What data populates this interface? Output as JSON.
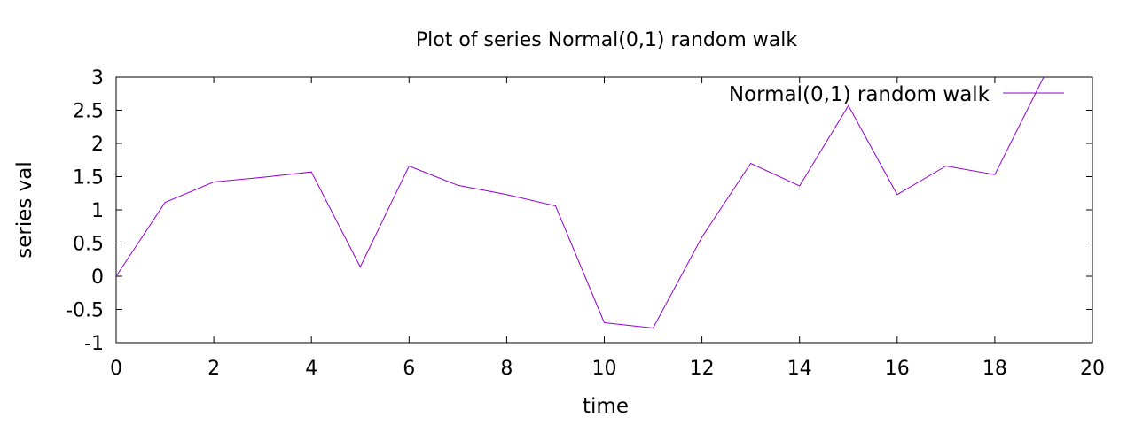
{
  "chart_data": {
    "type": "line",
    "title": "Plot of series Normal(0,1) random walk",
    "xlabel": "time",
    "ylabel": "series val",
    "xlim": [
      0,
      20
    ],
    "ylim": [
      -1,
      3
    ],
    "x_ticks": [
      0,
      2,
      4,
      6,
      8,
      10,
      12,
      14,
      16,
      18,
      20
    ],
    "y_ticks": [
      3,
      2.5,
      2,
      1.5,
      1,
      0.5,
      0,
      -0.5,
      -1
    ],
    "x_tick_labels": [
      "0",
      "2",
      "4",
      "6",
      "8",
      "10",
      "12",
      "14",
      "16",
      "18",
      "20"
    ],
    "y_tick_labels": [
      "3",
      "2.5",
      "2",
      "1.5",
      "1",
      "0.5",
      "0",
      "-0.5",
      "-1"
    ],
    "grid": false,
    "legend": {
      "placement": "top-right"
    },
    "series": [
      {
        "name": "Normal(0,1) random walk",
        "color": "#9400d3",
        "x": [
          0,
          1,
          2,
          3,
          4,
          5,
          6,
          7,
          8,
          9,
          10,
          11,
          12,
          13,
          14,
          15,
          16,
          17,
          18,
          19
        ],
        "values": [
          0.0,
          1.11,
          1.42,
          1.49,
          1.57,
          0.14,
          1.66,
          1.37,
          1.23,
          1.06,
          -0.7,
          -0.78,
          0.59,
          1.7,
          1.36,
          2.57,
          1.23,
          1.66,
          1.53,
          3.0
        ]
      }
    ]
  }
}
